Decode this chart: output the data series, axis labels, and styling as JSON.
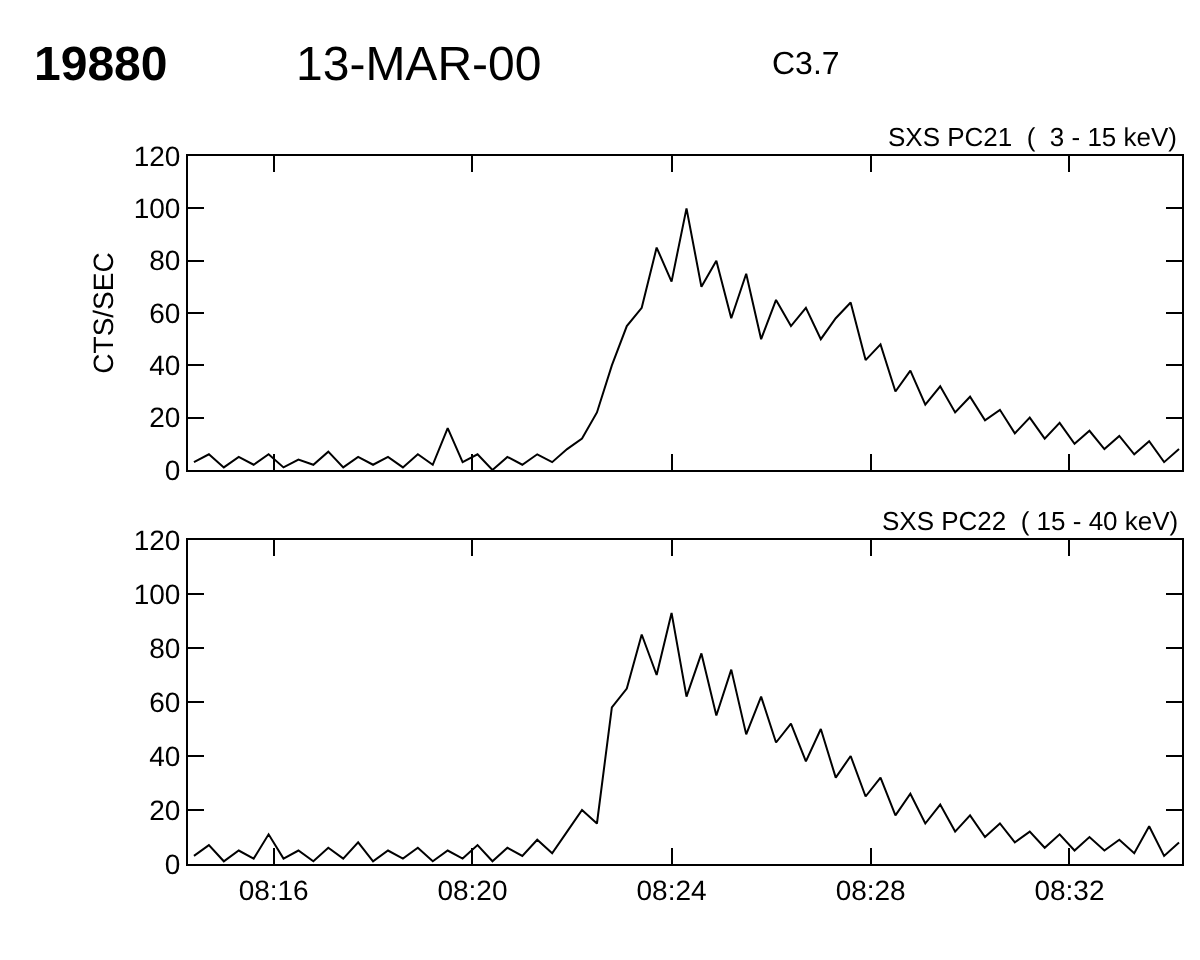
{
  "chart_data": [
    {
      "type": "line",
      "title": "19880",
      "subtitle": "13-MAR-00",
      "annotations": [
        "C3.7"
      ],
      "ylabel": "CTS/SEC",
      "xlim": [
        8.238,
        8.571
      ],
      "ylim": [
        0,
        120
      ],
      "yticks": [
        0,
        20,
        40,
        60,
        80,
        100,
        120
      ],
      "tick_labels": "y",
      "grid": false,
      "legend": false,
      "marker": "none",
      "line_style": "solid",
      "x": [
        8.24,
        8.245,
        8.25,
        8.255,
        8.26,
        8.265,
        8.27,
        8.275,
        8.28,
        8.285,
        8.29,
        8.295,
        8.3,
        8.305,
        8.31,
        8.315,
        8.32,
        8.325,
        8.33,
        8.335,
        8.34,
        8.345,
        8.35,
        8.355,
        8.36,
        8.365,
        8.37,
        8.375,
        8.38,
        8.385,
        8.39,
        8.395,
        8.4,
        8.405,
        8.41,
        8.415,
        8.42,
        8.425,
        8.43,
        8.435,
        8.44,
        8.445,
        8.45,
        8.455,
        8.46,
        8.465,
        8.47,
        8.475,
        8.48,
        8.485,
        8.49,
        8.495,
        8.5,
        8.505,
        8.51,
        8.515,
        8.52,
        8.525,
        8.53,
        8.535,
        8.54,
        8.545,
        8.55,
        8.555,
        8.56,
        8.565,
        8.57
      ],
      "series": [
        {
          "name": "SXS PC21  (  3 - 15 keV)",
          "color": "#000000",
          "values": [
            3,
            6,
            1,
            5,
            2,
            6,
            1,
            4,
            2,
            7,
            1,
            5,
            2,
            5,
            1,
            6,
            2,
            16,
            3,
            6,
            0,
            5,
            2,
            6,
            3,
            8,
            12,
            22,
            40,
            55,
            62,
            85,
            72,
            100,
            70,
            80,
            58,
            75,
            50,
            65,
            55,
            62,
            50,
            58,
            64,
            42,
            48,
            30,
            38,
            25,
            32,
            22,
            28,
            19,
            23,
            14,
            20,
            12,
            18,
            10,
            15,
            8,
            13,
            6,
            11,
            3,
            8
          ]
        }
      ]
    },
    {
      "type": "line",
      "xlim": [
        8.238,
        8.571
      ],
      "xticks": [
        {
          "value": 8.2667,
          "label": "08:16"
        },
        {
          "value": 8.3333,
          "label": "08:20"
        },
        {
          "value": 8.4,
          "label": "08:24"
        },
        {
          "value": 8.4667,
          "label": "08:28"
        },
        {
          "value": 8.5333,
          "label": "08:32"
        }
      ],
      "ylim": [
        0,
        120
      ],
      "yticks": [
        0,
        20,
        40,
        60,
        80,
        100,
        120
      ],
      "grid": false,
      "legend": false,
      "marker": "none",
      "line_style": "solid",
      "x": [
        8.24,
        8.245,
        8.25,
        8.255,
        8.26,
        8.265,
        8.27,
        8.275,
        8.28,
        8.285,
        8.29,
        8.295,
        8.3,
        8.305,
        8.31,
        8.315,
        8.32,
        8.325,
        8.33,
        8.335,
        8.34,
        8.345,
        8.35,
        8.355,
        8.36,
        8.365,
        8.37,
        8.375,
        8.38,
        8.385,
        8.39,
        8.395,
        8.4,
        8.405,
        8.41,
        8.415,
        8.42,
        8.425,
        8.43,
        8.435,
        8.44,
        8.445,
        8.45,
        8.455,
        8.46,
        8.465,
        8.47,
        8.475,
        8.48,
        8.485,
        8.49,
        8.495,
        8.5,
        8.505,
        8.51,
        8.515,
        8.52,
        8.525,
        8.53,
        8.535,
        8.54,
        8.545,
        8.55,
        8.555,
        8.56,
        8.565,
        8.57
      ],
      "series": [
        {
          "name": "SXS PC22  ( 15 - 40 keV)",
          "color": "#000000",
          "values": [
            3,
            7,
            1,
            5,
            2,
            11,
            2,
            5,
            1,
            6,
            2,
            8,
            1,
            5,
            2,
            6,
            1,
            5,
            2,
            7,
            1,
            6,
            3,
            9,
            4,
            12,
            20,
            15,
            58,
            65,
            85,
            70,
            93,
            62,
            78,
            55,
            72,
            48,
            62,
            45,
            52,
            38,
            50,
            32,
            40,
            25,
            32,
            18,
            26,
            15,
            22,
            12,
            18,
            10,
            15,
            8,
            12,
            6,
            11,
            5,
            10,
            5,
            9,
            4,
            14,
            3,
            8
          ]
        }
      ]
    }
  ]
}
